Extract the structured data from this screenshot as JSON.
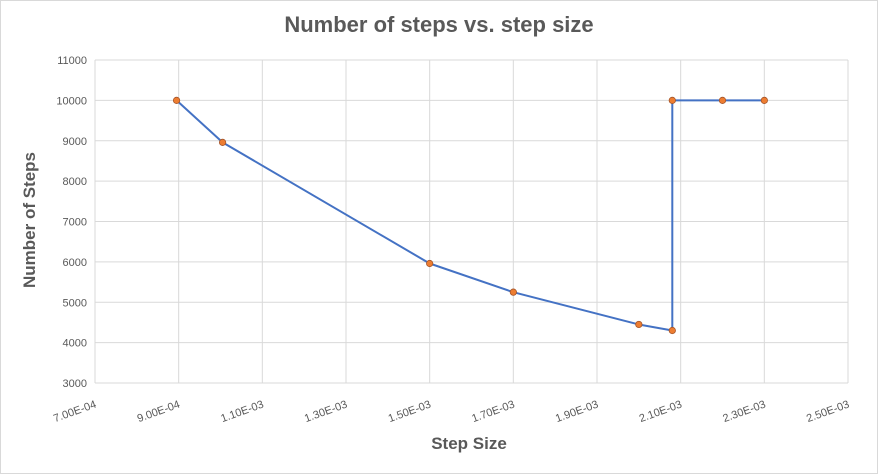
{
  "chart_data": {
    "type": "scatter",
    "title": "Number of steps vs. step size",
    "xlabel": "Step Size",
    "ylabel": "Number of Steps",
    "xlim": [
      0.0007,
      0.0025
    ],
    "ylim": [
      3000,
      11000
    ],
    "xticks": [
      0.0007,
      0.0009,
      0.0011,
      0.0013,
      0.0015,
      0.0017,
      0.0019,
      0.0021,
      0.0023,
      0.0025
    ],
    "xtick_labels": [
      "7.00E-04",
      "9.00E-04",
      "1.10E-03",
      "1.30E-03",
      "1.50E-03",
      "1.70E-03",
      "1.90E-03",
      "2.10E-03",
      "2.30E-03",
      "2.50E-03"
    ],
    "yticks": [
      3000,
      4000,
      5000,
      6000,
      7000,
      8000,
      9000,
      10000,
      11000
    ],
    "ytick_labels": [
      "3000",
      "4000",
      "5000",
      "6000",
      "7000",
      "8000",
      "9000",
      "10000",
      "11000"
    ],
    "grid": true,
    "legend": "none",
    "line_color": "#4472c4",
    "marker_color": "#ed7d31",
    "x": [
      0.000895,
      0.001005,
      0.0015,
      0.0017,
      0.002,
      0.00208,
      0.00208,
      0.0022,
      0.0023
    ],
    "y": [
      10000,
      8960,
      5960,
      5250,
      4450,
      4300,
      10000,
      10000,
      10000
    ]
  }
}
